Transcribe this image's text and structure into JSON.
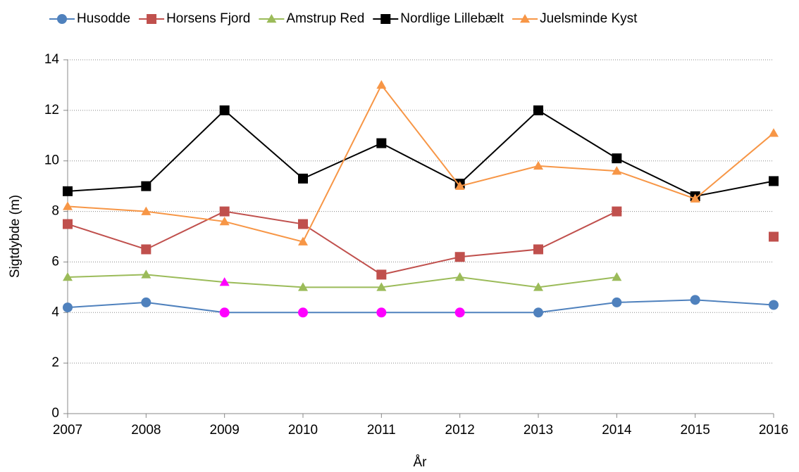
{
  "chart_data": {
    "type": "line",
    "x": [
      2007,
      2008,
      2009,
      2010,
      2011,
      2012,
      2013,
      2014,
      2015,
      2016
    ],
    "xlim": [
      2007,
      2016
    ],
    "xticks": [
      2007,
      2008,
      2009,
      2010,
      2011,
      2012,
      2013,
      2014,
      2015,
      2016
    ],
    "ylim": [
      0,
      14
    ],
    "yticks": [
      0,
      2,
      4,
      6,
      8,
      10,
      12,
      14
    ],
    "xlabel": "År",
    "ylabel": "Sigtdybde (m)",
    "grid": true,
    "legend": "top",
    "series": [
      {
        "name": "Husodde",
        "color": "#4f81bd",
        "marker": "circle",
        "values": [
          4.2,
          4.4,
          4.0,
          4.0,
          4.0,
          4.0,
          4.0,
          4.4,
          4.5,
          4.3
        ],
        "marker_colors": [
          "#4f81bd",
          "#4f81bd",
          "#ff00ff",
          "#ff00ff",
          "#ff00ff",
          "#ff00ff",
          "#4f81bd",
          "#4f81bd",
          "#4f81bd",
          "#4f81bd"
        ]
      },
      {
        "name": "Horsens Fjord",
        "color": "#c0504d",
        "marker": "square",
        "values": [
          7.5,
          6.5,
          8.0,
          7.5,
          5.5,
          6.2,
          6.5,
          8.0,
          null,
          7.0
        ]
      },
      {
        "name": "Amstrup Red",
        "color": "#9bbb59",
        "marker": "triangle",
        "values": [
          5.4,
          5.5,
          5.2,
          5.0,
          5.0,
          5.4,
          5.0,
          5.4,
          null,
          null
        ],
        "marker_colors": [
          "#9bbb59",
          "#9bbb59",
          "#ff00ff",
          "#9bbb59",
          "#9bbb59",
          "#9bbb59",
          "#9bbb59",
          "#9bbb59",
          "#9bbb59",
          "#9bbb59"
        ]
      },
      {
        "name": "Nordlige Lillebælt",
        "color": "#000000",
        "marker": "square",
        "values": [
          8.8,
          9.0,
          12.0,
          9.3,
          10.7,
          9.1,
          12.0,
          10.1,
          8.6,
          9.2
        ]
      },
      {
        "name": "Juelsminde Kyst",
        "color": "#f79646",
        "marker": "triangle",
        "values": [
          8.2,
          8.0,
          7.6,
          6.8,
          13.0,
          9.0,
          9.8,
          9.6,
          8.5,
          11.1
        ]
      }
    ]
  }
}
